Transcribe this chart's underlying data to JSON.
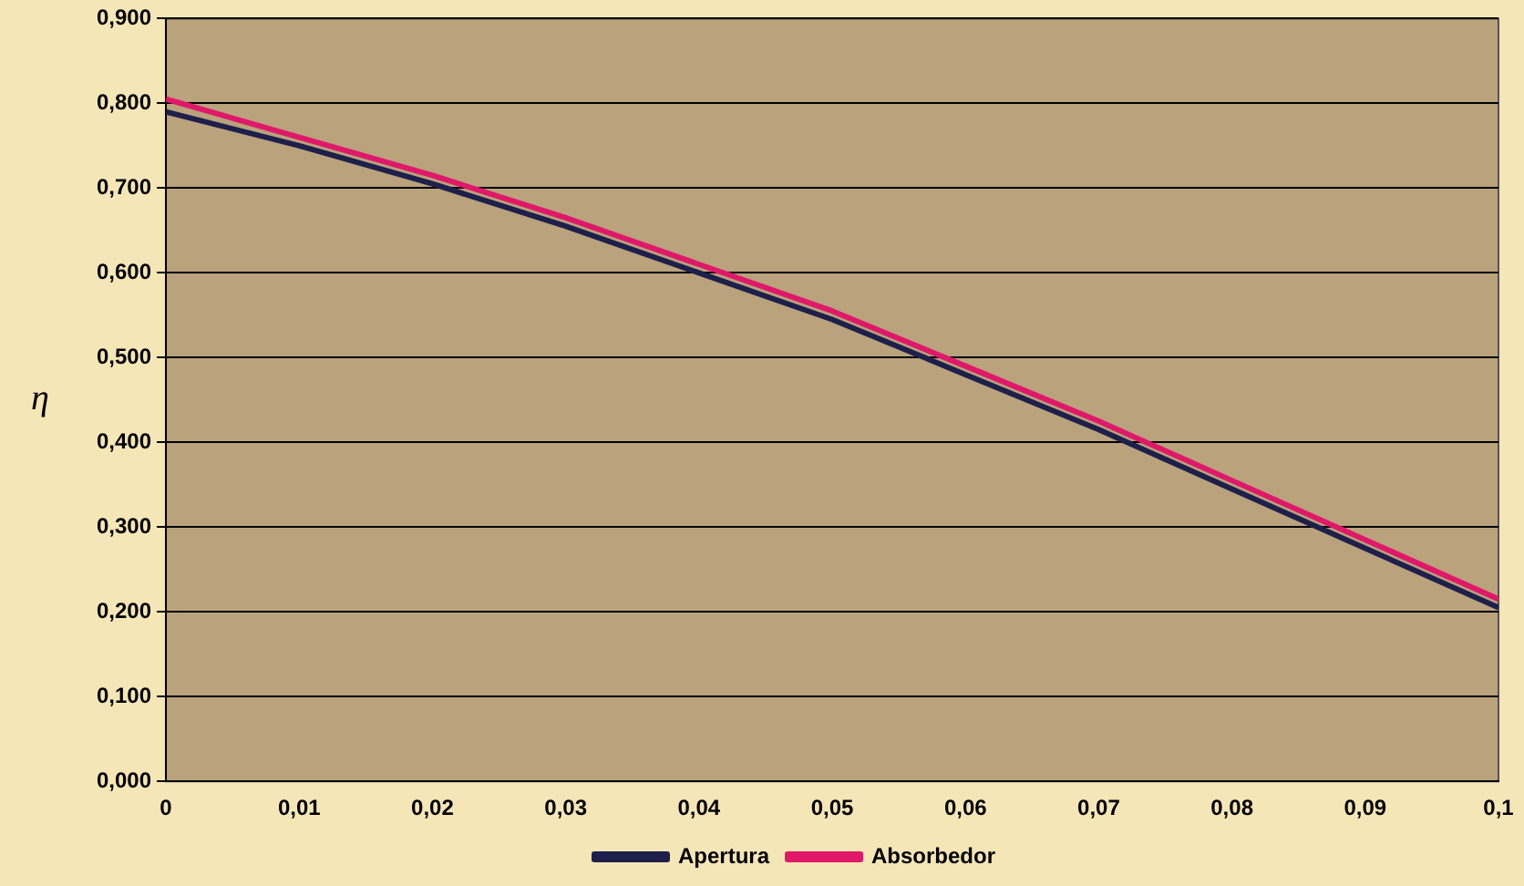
{
  "chart_data": {
    "type": "line",
    "ylabel": "η",
    "x": [
      0,
      0.01,
      0.02,
      0.03,
      0.04,
      0.05,
      0.06,
      0.07,
      0.08,
      0.09,
      0.1
    ],
    "series": [
      {
        "name": "Apertura",
        "color": "#1e1f4a",
        "values": [
          0.79,
          0.75,
          0.705,
          0.655,
          0.6,
          0.545,
          0.48,
          0.415,
          0.345,
          0.275,
          0.205
        ]
      },
      {
        "name": "Absorbedor",
        "color": "#e0186a",
        "values": [
          0.805,
          0.76,
          0.715,
          0.665,
          0.61,
          0.555,
          0.49,
          0.425,
          0.355,
          0.285,
          0.215
        ]
      }
    ],
    "xlim": [
      0,
      0.1
    ],
    "xticks": [
      0,
      {
        "value": 0.01,
        "label": "0,01"
      },
      {
        "value": 0.02,
        "label": "0,02"
      },
      {
        "value": 0.03,
        "label": "0,03"
      },
      {
        "value": 0.04,
        "label": "0,04"
      },
      {
        "value": 0.05,
        "label": "0,05"
      },
      {
        "value": 0.06,
        "label": "0,06"
      },
      {
        "value": 0.07,
        "label": "0,07"
      },
      {
        "value": 0.08,
        "label": "0,08"
      },
      {
        "value": 0.09,
        "label": "0,09"
      },
      {
        "value": 0.1,
        "label": "0,1"
      }
    ],
    "ylim": [
      0,
      0.9
    ],
    "yticks": [
      {
        "value": 0,
        "label": "0,000"
      },
      {
        "value": 0.1,
        "label": "0,100"
      },
      {
        "value": 0.2,
        "label": "0,200"
      },
      {
        "value": 0.3,
        "label": "0,300"
      },
      {
        "value": 0.4,
        "label": "0,400"
      },
      {
        "value": 0.5,
        "label": "0,500"
      },
      {
        "value": 0.6,
        "label": "0,600"
      },
      {
        "value": 0.7,
        "label": "0,700"
      },
      {
        "value": 0.8,
        "label": "0,800"
      },
      {
        "value": 0.9,
        "label": "0,900"
      }
    ],
    "grid": "y",
    "legend": "bottom",
    "marker": "none",
    "line_style": "solid"
  }
}
